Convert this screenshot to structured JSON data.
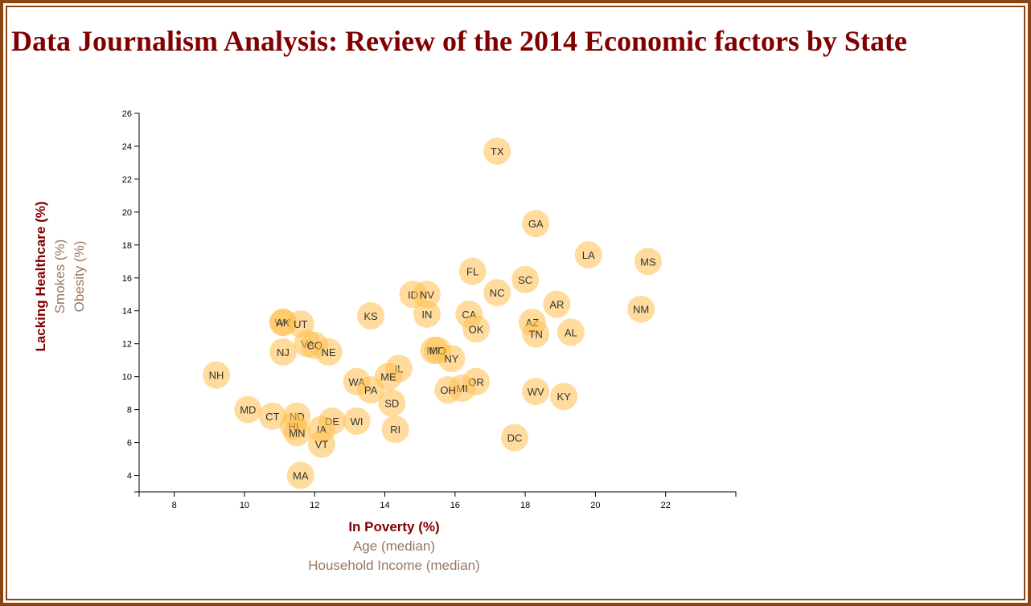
{
  "page": {
    "title": "Data Journalism Analysis: Review of the 2014 Economic factors by State"
  },
  "chart_data": {
    "type": "scatter",
    "xlim": [
      7,
      24
    ],
    "ylim": [
      3,
      26
    ],
    "x_ticks": [
      8,
      10,
      12,
      14,
      16,
      18,
      20,
      22
    ],
    "y_ticks": [
      4,
      6,
      8,
      10,
      12,
      14,
      16,
      18,
      20,
      22,
      24,
      26
    ],
    "x_axis_labels": [
      {
        "text": "In Poverty (%)",
        "active": true
      },
      {
        "text": "Age (median)",
        "active": false
      },
      {
        "text": "Household Income (median)",
        "active": false
      }
    ],
    "y_axis_labels": [
      {
        "text": "Lacking Healthcare (%)",
        "active": true
      },
      {
        "text": "Smokes (%)",
        "active": false
      },
      {
        "text": "Obesity (%)",
        "active": false
      }
    ],
    "grid": false,
    "marker_color": "#ffc04d",
    "points": [
      {
        "abbr": "TX",
        "x": 17.2,
        "y": 23.7
      },
      {
        "abbr": "GA",
        "x": 18.3,
        "y": 19.3
      },
      {
        "abbr": "LA",
        "x": 19.8,
        "y": 17.4
      },
      {
        "abbr": "MS",
        "x": 21.5,
        "y": 17.0
      },
      {
        "abbr": "FL",
        "x": 16.5,
        "y": 16.4
      },
      {
        "abbr": "SC",
        "x": 18.0,
        "y": 15.9
      },
      {
        "abbr": "NC",
        "x": 17.2,
        "y": 15.1
      },
      {
        "abbr": "ID",
        "x": 14.8,
        "y": 15.0
      },
      {
        "abbr": "NV",
        "x": 15.2,
        "y": 15.0
      },
      {
        "abbr": "AR",
        "x": 18.9,
        "y": 14.4
      },
      {
        "abbr": "NM",
        "x": 21.3,
        "y": 14.1
      },
      {
        "abbr": "IN",
        "x": 15.2,
        "y": 13.8
      },
      {
        "abbr": "CA",
        "x": 16.4,
        "y": 13.8
      },
      {
        "abbr": "KS",
        "x": 13.6,
        "y": 13.7
      },
      {
        "abbr": "WY",
        "x": 11.1,
        "y": 13.3
      },
      {
        "abbr": "AK",
        "x": 11.1,
        "y": 13.3
      },
      {
        "abbr": "UT",
        "x": 11.6,
        "y": 13.2
      },
      {
        "abbr": "AZ",
        "x": 18.2,
        "y": 13.3
      },
      {
        "abbr": "OK",
        "x": 16.6,
        "y": 12.9
      },
      {
        "abbr": "AL",
        "x": 19.3,
        "y": 12.7
      },
      {
        "abbr": "TN",
        "x": 18.3,
        "y": 12.6
      },
      {
        "abbr": "VA",
        "x": 11.8,
        "y": 12.0
      },
      {
        "abbr": "CO",
        "x": 12.0,
        "y": 11.9
      },
      {
        "abbr": "NE",
        "x": 12.4,
        "y": 11.5
      },
      {
        "abbr": "NJ",
        "x": 11.1,
        "y": 11.5
      },
      {
        "abbr": "MT",
        "x": 15.4,
        "y": 11.6
      },
      {
        "abbr": "MO",
        "x": 15.5,
        "y": 11.6
      },
      {
        "abbr": "NY",
        "x": 15.9,
        "y": 11.1
      },
      {
        "abbr": "IL",
        "x": 14.4,
        "y": 10.5
      },
      {
        "abbr": "NH",
        "x": 9.2,
        "y": 10.1
      },
      {
        "abbr": "ME",
        "x": 14.1,
        "y": 10.0
      },
      {
        "abbr": "OR",
        "x": 16.6,
        "y": 9.7
      },
      {
        "abbr": "WA",
        "x": 13.2,
        "y": 9.7
      },
      {
        "abbr": "MI",
        "x": 16.2,
        "y": 9.3
      },
      {
        "abbr": "OH",
        "x": 15.8,
        "y": 9.2
      },
      {
        "abbr": "PA",
        "x": 13.6,
        "y": 9.2
      },
      {
        "abbr": "WV",
        "x": 18.3,
        "y": 9.1
      },
      {
        "abbr": "KY",
        "x": 19.1,
        "y": 8.8
      },
      {
        "abbr": "SD",
        "x": 14.2,
        "y": 8.4
      },
      {
        "abbr": "MD",
        "x": 10.1,
        "y": 8.0
      },
      {
        "abbr": "CT",
        "x": 10.8,
        "y": 7.6
      },
      {
        "abbr": "ND",
        "x": 11.5,
        "y": 7.6
      },
      {
        "abbr": "DE",
        "x": 12.5,
        "y": 7.3
      },
      {
        "abbr": "WI",
        "x": 13.2,
        "y": 7.3
      },
      {
        "abbr": "HI",
        "x": 11.4,
        "y": 7.0
      },
      {
        "abbr": "IA",
        "x": 12.2,
        "y": 6.8
      },
      {
        "abbr": "RI",
        "x": 14.3,
        "y": 6.8
      },
      {
        "abbr": "MN",
        "x": 11.5,
        "y": 6.6
      },
      {
        "abbr": "DC",
        "x": 17.7,
        "y": 6.3
      },
      {
        "abbr": "VT",
        "x": 12.2,
        "y": 5.9
      },
      {
        "abbr": "MA",
        "x": 11.6,
        "y": 4.0
      }
    ]
  }
}
